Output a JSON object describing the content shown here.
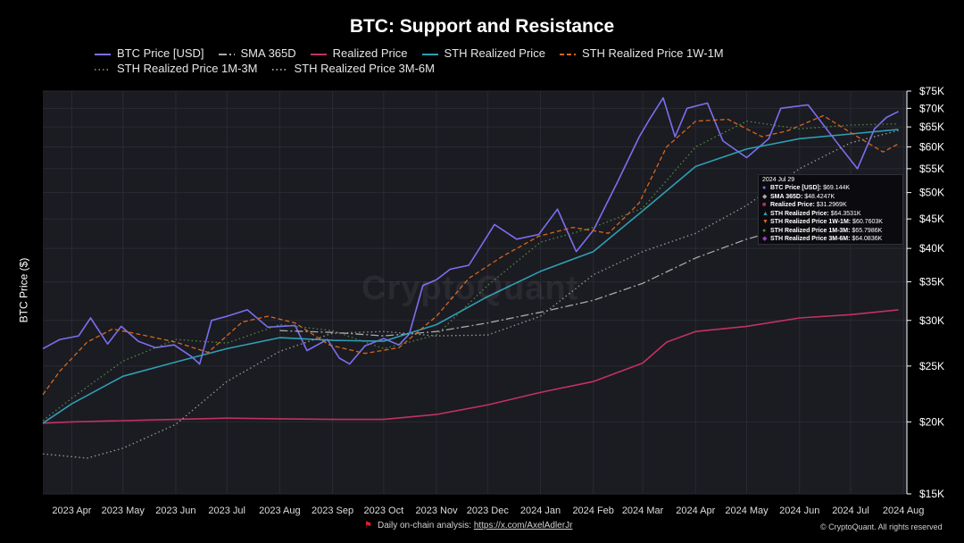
{
  "title": "BTC: Support and Resistance",
  "ylabel": "BTC Price ($)",
  "watermark": "CryptoQuant",
  "footer": {
    "text": "Daily on-chain analysis:",
    "link": "https://x.com/AxelAdlerJr",
    "copyright": "© CryptoQuant. All rights reserved"
  },
  "colors": {
    "background": "#000000",
    "plot": "#1b1b22",
    "grid": "#2a2a33",
    "btc": "#7b6ff0",
    "sma": "#a9a9a9",
    "realized": "#c2325f",
    "sth": "#2e9fb3",
    "sth_1w1m": "#d8671c",
    "sth_1m3m": "#4f8b3f",
    "sth_3m6m": "#9a9a9a"
  },
  "tooltip": {
    "date": "2024 Jul 29",
    "rows": [
      {
        "name": "BTC Price [USD]",
        "value": "$69.144K",
        "color": "#7b6ff0",
        "mark": "●"
      },
      {
        "name": "SMA 365D",
        "value": "$48.4247K",
        "color": "#a9a9a9",
        "mark": "◆"
      },
      {
        "name": "Realized Price",
        "value": "$31.2969K",
        "color": "#c2325f",
        "mark": "■"
      },
      {
        "name": "STH Realized Price",
        "value": "$64.3531K",
        "color": "#2e9fb3",
        "mark": "▲"
      },
      {
        "name": "STH Realized Price 1W-1M",
        "value": "$60.7603K",
        "color": "#d8671c",
        "mark": "▼"
      },
      {
        "name": "STH Realized Price 1M-3M",
        "value": "$65.7986K",
        "color": "#4f8b3f",
        "mark": "●"
      },
      {
        "name": "STH Realized Price 3M-6M",
        "value": "$64.0836K",
        "color": "#a040c0",
        "mark": "◆"
      }
    ]
  },
  "chart_data": {
    "type": "line",
    "title": "BTC: Support and Resistance",
    "ylabel": "BTC Price ($)",
    "yscale": "log",
    "ylim": [
      15000,
      75000
    ],
    "y_ticks": [
      {
        "v": 75000,
        "label": "$75K"
      },
      {
        "v": 70000,
        "label": "$70K"
      },
      {
        "v": 65000,
        "label": "$65K"
      },
      {
        "v": 60000,
        "label": "$60K"
      },
      {
        "v": 55000,
        "label": "$55K"
      },
      {
        "v": 50000,
        "label": "$50K"
      },
      {
        "v": 45000,
        "label": "$45K"
      },
      {
        "v": 40000,
        "label": "$40K"
      },
      {
        "v": 35000,
        "label": "$35K"
      },
      {
        "v": 30000,
        "label": "$30K"
      },
      {
        "v": 25000,
        "label": "$25K"
      },
      {
        "v": 20000,
        "label": "$20K"
      },
      {
        "v": 15000,
        "label": "$15K"
      }
    ],
    "xlim": [
      "2023-03-15",
      "2024-08-03"
    ],
    "x_ticks": [
      {
        "date": "2023-04-01",
        "label": "2023 Apr"
      },
      {
        "date": "2023-05-01",
        "label": "2023 May"
      },
      {
        "date": "2023-06-01",
        "label": "2023 Jun"
      },
      {
        "date": "2023-07-01",
        "label": "2023 Jul"
      },
      {
        "date": "2023-08-01",
        "label": "2023 Aug"
      },
      {
        "date": "2023-09-01",
        "label": "2023 Sep"
      },
      {
        "date": "2023-10-01",
        "label": "2023 Oct"
      },
      {
        "date": "2023-11-01",
        "label": "2023 Nov"
      },
      {
        "date": "2023-12-01",
        "label": "2023 Dec"
      },
      {
        "date": "2024-01-01",
        "label": "2024 Jan"
      },
      {
        "date": "2024-02-01",
        "label": "2024 Feb"
      },
      {
        "date": "2024-03-01",
        "label": "2024 Mar"
      },
      {
        "date": "2024-04-01",
        "label": "2024 Apr"
      },
      {
        "date": "2024-05-01",
        "label": "2024 May"
      },
      {
        "date": "2024-06-01",
        "label": "2024 Jun"
      },
      {
        "date": "2024-07-01",
        "label": "2024 Jul"
      },
      {
        "date": "2024-08-01",
        "label": "2024 Aug"
      }
    ],
    "grid": true,
    "legend_position": "top",
    "series": [
      {
        "name": "BTC Price [USD]",
        "style": "solid",
        "color": "#7b6ff0",
        "points": [
          [
            "2023-03-15",
            26800
          ],
          [
            "2023-03-25",
            27800
          ],
          [
            "2023-04-05",
            28200
          ],
          [
            "2023-04-12",
            30300
          ],
          [
            "2023-04-22",
            27300
          ],
          [
            "2023-04-30",
            29300
          ],
          [
            "2023-05-10",
            27600
          ],
          [
            "2023-05-20",
            26900
          ],
          [
            "2023-05-31",
            27200
          ],
          [
            "2023-06-10",
            26000
          ],
          [
            "2023-06-15",
            25200
          ],
          [
            "2023-06-22",
            30000
          ],
          [
            "2023-07-01",
            30500
          ],
          [
            "2023-07-13",
            31300
          ],
          [
            "2023-07-25",
            29200
          ],
          [
            "2023-08-10",
            29400
          ],
          [
            "2023-08-17",
            26600
          ],
          [
            "2023-08-29",
            27800
          ],
          [
            "2023-09-05",
            25800
          ],
          [
            "2023-09-11",
            25200
          ],
          [
            "2023-09-20",
            27100
          ],
          [
            "2023-10-01",
            27900
          ],
          [
            "2023-10-10",
            27200
          ],
          [
            "2023-10-16",
            28400
          ],
          [
            "2023-10-24",
            34500
          ],
          [
            "2023-11-01",
            35300
          ],
          [
            "2023-11-09",
            36800
          ],
          [
            "2023-11-20",
            37400
          ],
          [
            "2023-12-05",
            44000
          ],
          [
            "2023-12-18",
            41500
          ],
          [
            "2023-12-31",
            42300
          ],
          [
            "2024-01-11",
            46800
          ],
          [
            "2024-01-22",
            39500
          ],
          [
            "2024-02-01",
            43000
          ],
          [
            "2024-02-15",
            52000
          ],
          [
            "2024-02-28",
            62500
          ],
          [
            "2024-03-05",
            67000
          ],
          [
            "2024-03-13",
            73000
          ],
          [
            "2024-03-20",
            62500
          ],
          [
            "2024-03-27",
            70000
          ],
          [
            "2024-04-08",
            71500
          ],
          [
            "2024-04-17",
            61500
          ],
          [
            "2024-05-01",
            57500
          ],
          [
            "2024-05-14",
            62000
          ],
          [
            "2024-05-21",
            70000
          ],
          [
            "2024-06-06",
            71000
          ],
          [
            "2024-06-24",
            60500
          ],
          [
            "2024-07-05",
            55000
          ],
          [
            "2024-07-15",
            64500
          ],
          [
            "2024-07-22",
            67500
          ],
          [
            "2024-07-29",
            69144
          ]
        ]
      },
      {
        "name": "SMA 365D",
        "style": "dashdot",
        "color": "#a9a9a9",
        "points": [
          [
            "2023-08-01",
            28800
          ],
          [
            "2023-09-01",
            28600
          ],
          [
            "2023-10-01",
            28200
          ],
          [
            "2023-11-01",
            28700
          ],
          [
            "2023-12-01",
            29700
          ],
          [
            "2024-01-01",
            31000
          ],
          [
            "2024-02-01",
            32500
          ],
          [
            "2024-03-01",
            34800
          ],
          [
            "2024-04-01",
            38500
          ],
          [
            "2024-05-01",
            41500
          ],
          [
            "2024-06-01",
            44000
          ],
          [
            "2024-07-01",
            46500
          ],
          [
            "2024-07-29",
            48425
          ]
        ]
      },
      {
        "name": "Realized Price",
        "style": "solid",
        "color": "#c2325f",
        "points": [
          [
            "2023-03-15",
            19900
          ],
          [
            "2023-04-01",
            20000
          ],
          [
            "2023-05-01",
            20100
          ],
          [
            "2023-06-01",
            20200
          ],
          [
            "2023-07-01",
            20300
          ],
          [
            "2023-08-01",
            20250
          ],
          [
            "2023-09-01",
            20200
          ],
          [
            "2023-10-01",
            20200
          ],
          [
            "2023-11-01",
            20600
          ],
          [
            "2023-12-01",
            21400
          ],
          [
            "2024-01-01",
            22500
          ],
          [
            "2024-02-01",
            23500
          ],
          [
            "2024-03-01",
            25300
          ],
          [
            "2024-03-15",
            27500
          ],
          [
            "2024-04-01",
            28700
          ],
          [
            "2024-05-01",
            29300
          ],
          [
            "2024-06-01",
            30300
          ],
          [
            "2024-07-01",
            30700
          ],
          [
            "2024-07-29",
            31297
          ]
        ]
      },
      {
        "name": "STH Realized Price",
        "style": "solid",
        "color": "#2e9fb3",
        "points": [
          [
            "2023-03-15",
            19900
          ],
          [
            "2023-04-01",
            21500
          ],
          [
            "2023-05-01",
            24000
          ],
          [
            "2023-06-01",
            25400
          ],
          [
            "2023-07-01",
            26800
          ],
          [
            "2023-08-01",
            28000
          ],
          [
            "2023-09-01",
            27700
          ],
          [
            "2023-10-01",
            27600
          ],
          [
            "2023-11-01",
            29500
          ],
          [
            "2023-12-01",
            33000
          ],
          [
            "2024-01-01",
            36500
          ],
          [
            "2024-02-01",
            39500
          ],
          [
            "2024-03-01",
            46500
          ],
          [
            "2024-04-01",
            55500
          ],
          [
            "2024-05-01",
            59500
          ],
          [
            "2024-06-01",
            62000
          ],
          [
            "2024-07-01",
            63200
          ],
          [
            "2024-07-29",
            64353
          ]
        ]
      },
      {
        "name": "STH Realized Price 1W-1M",
        "style": "dashed",
        "color": "#d8671c",
        "points": [
          [
            "2023-03-15",
            22300
          ],
          [
            "2023-03-25",
            24500
          ],
          [
            "2023-04-10",
            27500
          ],
          [
            "2023-04-25",
            29000
          ],
          [
            "2023-05-15",
            28200
          ],
          [
            "2023-06-01",
            27500
          ],
          [
            "2023-06-20",
            26400
          ],
          [
            "2023-07-10",
            29800
          ],
          [
            "2023-07-25",
            30500
          ],
          [
            "2023-08-10",
            29700
          ],
          [
            "2023-08-30",
            27200
          ],
          [
            "2023-09-20",
            26300
          ],
          [
            "2023-10-10",
            26900
          ],
          [
            "2023-11-01",
            30500
          ],
          [
            "2023-11-20",
            35500
          ],
          [
            "2023-12-10",
            38800
          ],
          [
            "2023-12-31",
            42000
          ],
          [
            "2024-01-20",
            43500
          ],
          [
            "2024-02-10",
            42500
          ],
          [
            "2024-02-28",
            48000
          ],
          [
            "2024-03-15",
            60000
          ],
          [
            "2024-04-01",
            66500
          ],
          [
            "2024-04-20",
            67000
          ],
          [
            "2024-05-10",
            62500
          ],
          [
            "2024-05-25",
            64000
          ],
          [
            "2024-06-15",
            68000
          ],
          [
            "2024-07-05",
            62500
          ],
          [
            "2024-07-20",
            58800
          ],
          [
            "2024-07-29",
            60760
          ]
        ]
      },
      {
        "name": "STH Realized Price 1M-3M",
        "style": "dotted",
        "color": "#4f8b3f",
        "points": [
          [
            "2023-03-15",
            20100
          ],
          [
            "2023-04-01",
            22000
          ],
          [
            "2023-05-01",
            25500
          ],
          [
            "2023-06-01",
            27800
          ],
          [
            "2023-07-01",
            27400
          ],
          [
            "2023-08-01",
            29500
          ],
          [
            "2023-09-01",
            28800
          ],
          [
            "2023-10-01",
            26800
          ],
          [
            "2023-11-01",
            28300
          ],
          [
            "2023-12-01",
            34500
          ],
          [
            "2024-01-01",
            41000
          ],
          [
            "2024-02-01",
            43500
          ],
          [
            "2024-03-01",
            47000
          ],
          [
            "2024-04-01",
            60000
          ],
          [
            "2024-05-01",
            66500
          ],
          [
            "2024-06-01",
            64500
          ],
          [
            "2024-07-01",
            65500
          ],
          [
            "2024-07-29",
            65799
          ]
        ]
      },
      {
        "name": "STH Realized Price 3M-6M",
        "style": "dotted",
        "color": "#9a9a9a",
        "points": [
          [
            "2023-03-15",
            17600
          ],
          [
            "2023-04-10",
            17300
          ],
          [
            "2023-05-01",
            18000
          ],
          [
            "2023-06-01",
            19800
          ],
          [
            "2023-07-01",
            23500
          ],
          [
            "2023-08-01",
            26500
          ],
          [
            "2023-09-01",
            28500
          ],
          [
            "2023-10-01",
            28700
          ],
          [
            "2023-11-01",
            28200
          ],
          [
            "2023-12-01",
            28300
          ],
          [
            "2024-01-01",
            30500
          ],
          [
            "2024-02-01",
            36000
          ],
          [
            "2024-03-01",
            39500
          ],
          [
            "2024-04-01",
            42500
          ],
          [
            "2024-05-01",
            47500
          ],
          [
            "2024-06-01",
            55000
          ],
          [
            "2024-07-01",
            61000
          ],
          [
            "2024-07-29",
            64084
          ]
        ]
      }
    ]
  }
}
